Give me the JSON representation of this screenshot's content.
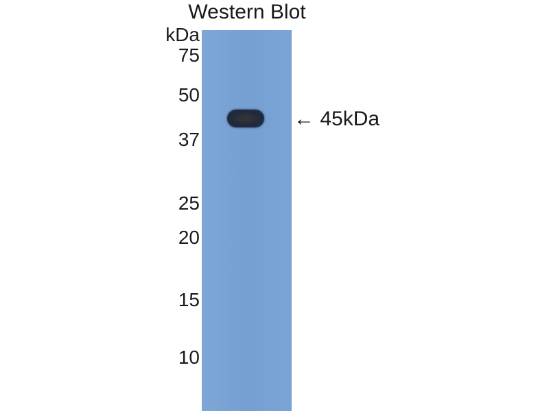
{
  "title": "Western Blot",
  "unit_label": "kDa",
  "markers": [
    "75",
    "50",
    "37",
    "25",
    "20",
    "15",
    "10"
  ],
  "band_annotation": {
    "arrow": "←",
    "label": "45kDa"
  },
  "colors": {
    "membrane": "#78a2d4",
    "band": "#232c3c",
    "text": "#1a1a1a"
  }
}
